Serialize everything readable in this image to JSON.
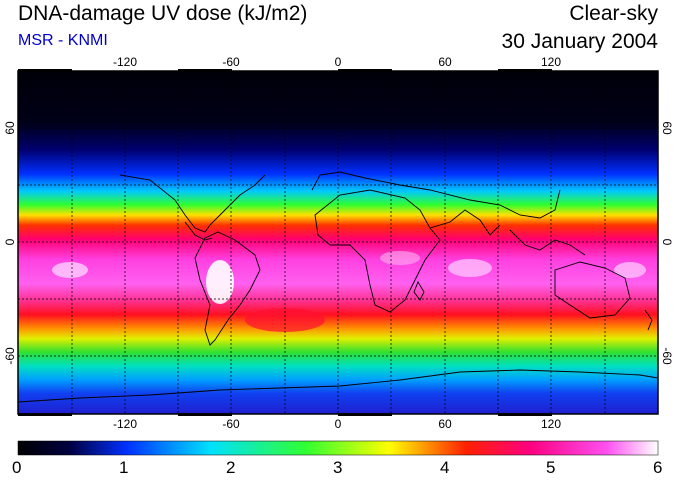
{
  "header": {
    "title": "DNA-damage UV dose (kJ/m2)",
    "source": "MSR - KNMI",
    "condition": "Clear-sky",
    "date": "30 January 2004"
  },
  "axes": {
    "lon_labels_top": [
      "-120",
      "-60",
      "0",
      "60",
      "120"
    ],
    "lon_labels_bottom": [
      "-120",
      "-60",
      "0",
      "60",
      "120"
    ],
    "lat_labels_left": [
      "60",
      "0",
      "-60"
    ],
    "lat_labels_right": [
      "60",
      "0",
      "-60"
    ]
  },
  "colorbar": {
    "labels": [
      "0",
      "1",
      "2",
      "3",
      "4",
      "5",
      "6"
    ],
    "min": 0,
    "max": 6
  },
  "colors": {
    "subtitle": "#0000cc",
    "frame": "#000000"
  }
}
